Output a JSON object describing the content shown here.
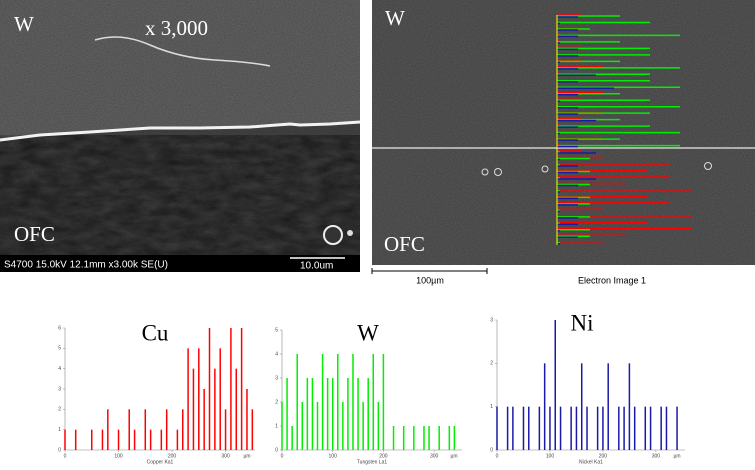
{
  "sem_image": {
    "top_label": "W",
    "magnification": "x 3,000",
    "bottom_label": "OFC",
    "info_bar": "S4700 15.0kV 12.1mm x3.00k SE(U)",
    "scale_bar": "10.0um"
  },
  "eds_image": {
    "top_label": "W",
    "bottom_label": "OFC",
    "scale_bar": "100µm",
    "caption": "Electron Image 1"
  },
  "chart_data": [
    {
      "type": "bar",
      "title": "Cu",
      "x_label": "Copper Ka1",
      "x_unit": "µm",
      "color": "#ff0000",
      "x": [
        0,
        10,
        20,
        30,
        40,
        50,
        60,
        70,
        80,
        90,
        100,
        110,
        120,
        130,
        140,
        150,
        160,
        170,
        180,
        190,
        200,
        210,
        220,
        230,
        240,
        250,
        260,
        270,
        280,
        290,
        300,
        310,
        320,
        330,
        340,
        350
      ],
      "values": [
        1,
        0,
        1,
        0,
        0,
        1,
        0,
        1,
        2,
        0,
        1,
        0,
        2,
        1,
        0,
        2,
        1,
        0,
        1,
        2,
        0,
        1,
        2,
        5,
        4,
        5,
        3,
        6,
        4,
        5,
        2,
        6,
        4,
        6,
        3,
        2
      ],
      "xlim": [
        0,
        355
      ],
      "xticks": [
        0,
        100,
        200,
        300
      ],
      "ylim": [
        0,
        6
      ],
      "yticks": [
        0,
        1,
        2,
        3,
        4,
        5,
        6
      ]
    },
    {
      "type": "bar",
      "title": "W",
      "x_label": "Tungsten La1",
      "x_unit": "µm",
      "color": "#00ee00",
      "x": [
        0,
        10,
        20,
        30,
        40,
        50,
        60,
        70,
        80,
        90,
        100,
        110,
        120,
        130,
        140,
        150,
        160,
        170,
        180,
        190,
        200,
        210,
        220,
        230,
        240,
        250,
        260,
        270,
        280,
        290,
        300,
        310,
        320,
        330,
        340,
        350
      ],
      "values": [
        2,
        3,
        1,
        4,
        2,
        3,
        3,
        2,
        4,
        3,
        3,
        4,
        2,
        3,
        4,
        3,
        2,
        3,
        4,
        2,
        4,
        0,
        1,
        0,
        1,
        0,
        1,
        0,
        1,
        1,
        0,
        1,
        0,
        1,
        1,
        0
      ],
      "xlim": [
        0,
        355
      ],
      "xticks": [
        0,
        100,
        200,
        300
      ],
      "ylim": [
        0,
        5
      ],
      "yticks": [
        0,
        1,
        2,
        3,
        4,
        5
      ]
    },
    {
      "type": "bar",
      "title": "Ni",
      "x_label": "Nickel Ka1",
      "x_unit": "µm",
      "color": "#1a1aa8",
      "x": [
        0,
        10,
        20,
        30,
        40,
        50,
        60,
        70,
        80,
        90,
        100,
        110,
        120,
        130,
        140,
        150,
        160,
        170,
        180,
        190,
        200,
        210,
        220,
        230,
        240,
        250,
        260,
        270,
        280,
        290,
        300,
        310,
        320,
        330,
        340,
        350
      ],
      "values": [
        1,
        0,
        1,
        1,
        0,
        1,
        1,
        0,
        1,
        2,
        1,
        3,
        1,
        0,
        1,
        1,
        2,
        1,
        0,
        1,
        1,
        2,
        0,
        1,
        1,
        2,
        1,
        0,
        1,
        1,
        0,
        1,
        1,
        0,
        1,
        0
      ],
      "xlim": [
        0,
        355
      ],
      "xticks": [
        0,
        100,
        200,
        300
      ],
      "ylim": [
        0,
        3
      ],
      "yticks": [
        0,
        1,
        2,
        3
      ]
    }
  ]
}
